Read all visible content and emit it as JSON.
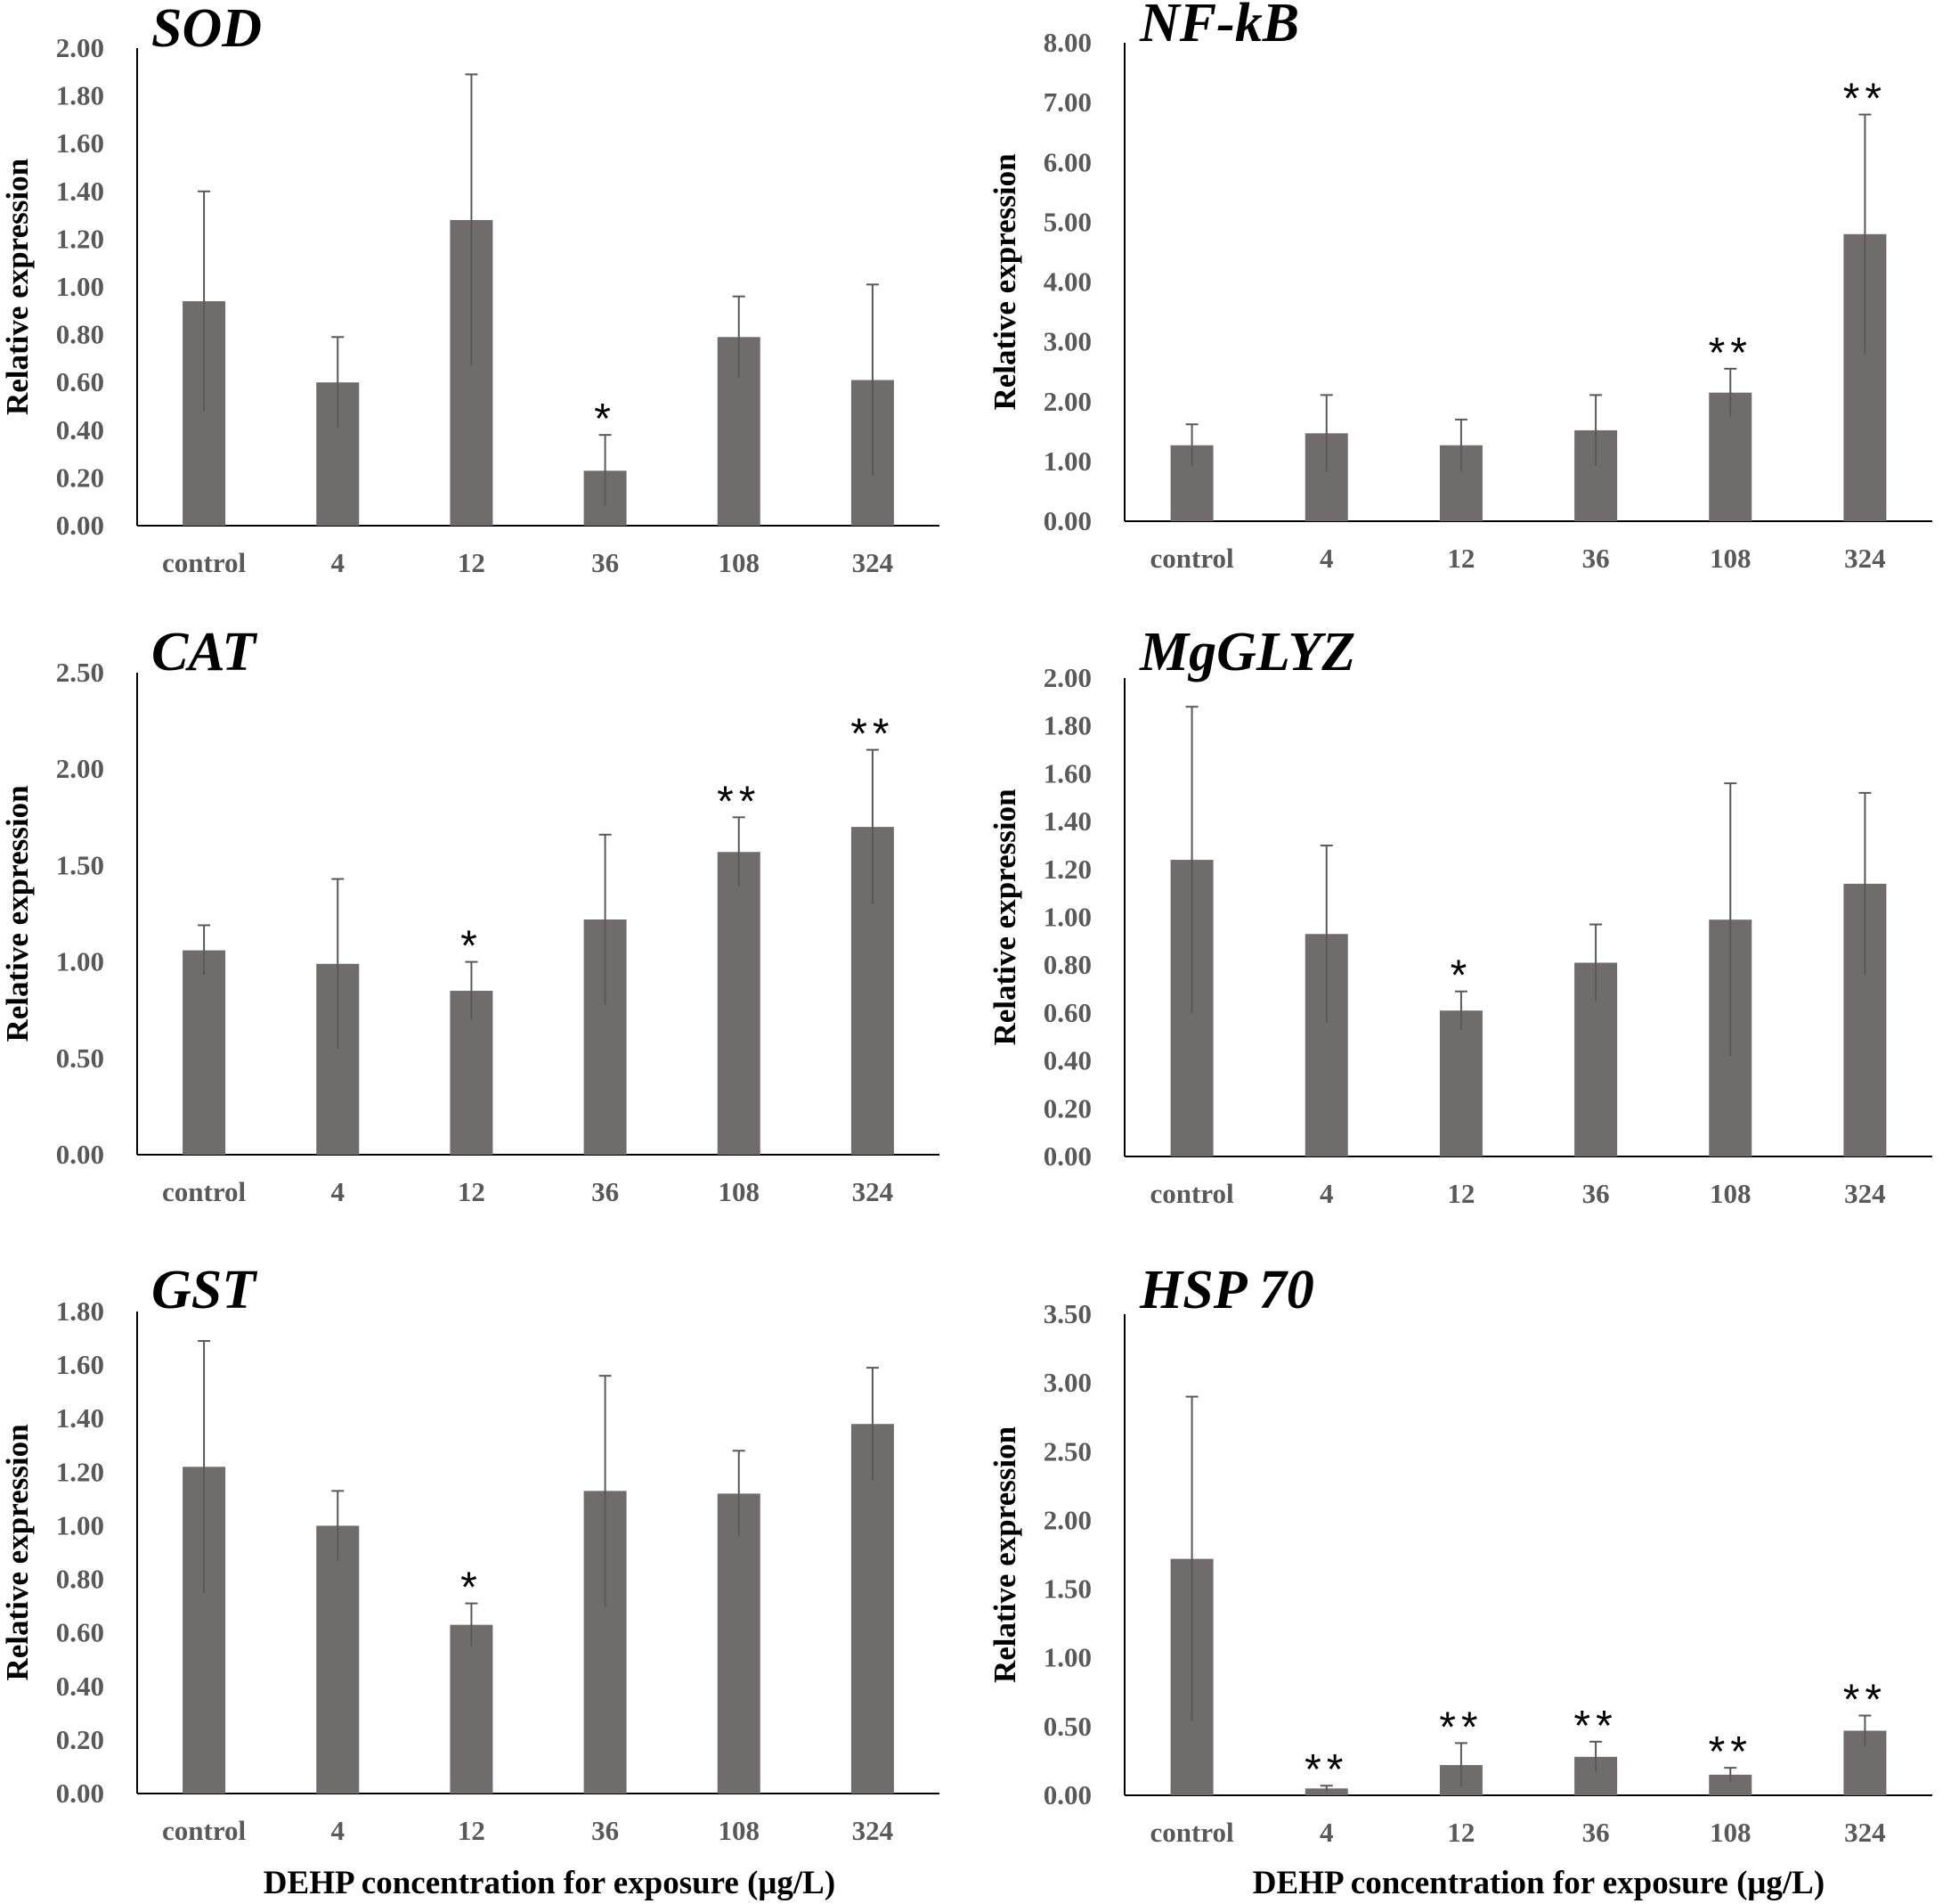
{
  "figure": {
    "x_axis_label_left": "DEHP concentration for exposure (μg/L)",
    "x_axis_label_right": "DEHP concentration for exposure (μg/L)",
    "colors": {
      "bar": "#706c6b",
      "axis": "#000000",
      "tick_text": "#595959",
      "error_bar": "#595959"
    }
  },
  "chart_data": [
    {
      "type": "bar",
      "title": "SOD",
      "xlabel": "",
      "ylabel": "Relative expression",
      "categories": [
        "control",
        "4",
        "12",
        "36",
        "108",
        "324"
      ],
      "values": [
        0.94,
        0.6,
        1.28,
        0.23,
        0.79,
        0.61
      ],
      "errors": [
        0.46,
        0.19,
        0.61,
        0.15,
        0.17,
        0.4
      ],
      "significance": [
        "",
        "",
        "",
        "*",
        "",
        ""
      ],
      "ylim": [
        0,
        2.0
      ],
      "yticks": [
        "0.00",
        "0.20",
        "0.40",
        "0.60",
        "0.80",
        "1.00",
        "1.20",
        "1.40",
        "1.60",
        "1.80",
        "2.00"
      ]
    },
    {
      "type": "bar",
      "title": "NF-kB",
      "xlabel": "",
      "ylabel": "Relative expression",
      "categories": [
        "control",
        "4",
        "12",
        "36",
        "108",
        "324"
      ],
      "values": [
        1.27,
        1.47,
        1.27,
        1.52,
        2.15,
        4.8
      ],
      "errors": [
        0.35,
        0.64,
        0.43,
        0.59,
        0.4,
        2.0
      ],
      "significance": [
        "",
        "",
        "",
        "",
        "**",
        "**"
      ],
      "ylim": [
        0,
        8.0
      ],
      "yticks": [
        "0.00",
        "1.00",
        "2.00",
        "3.00",
        "4.00",
        "5.00",
        "6.00",
        "7.00",
        "8.00"
      ]
    },
    {
      "type": "bar",
      "title": "CAT",
      "xlabel": "",
      "ylabel": "Relative expression",
      "categories": [
        "control",
        "4",
        "12",
        "36",
        "108",
        "324"
      ],
      "values": [
        1.06,
        0.99,
        0.85,
        1.22,
        1.57,
        1.7
      ],
      "errors": [
        0.13,
        0.44,
        0.15,
        0.44,
        0.18,
        0.4
      ],
      "significance": [
        "",
        "",
        "*",
        "",
        "**",
        "**"
      ],
      "ylim": [
        0,
        2.5
      ],
      "yticks": [
        "0.00",
        "0.50",
        "1.00",
        "1.50",
        "2.00",
        "2.50"
      ]
    },
    {
      "type": "bar",
      "title": "MgGLYZ",
      "xlabel": "",
      "ylabel": "Relative expression",
      "categories": [
        "control",
        "4",
        "12",
        "36",
        "108",
        "324"
      ],
      "values": [
        1.24,
        0.93,
        0.61,
        0.81,
        0.99,
        1.14
      ],
      "errors": [
        0.64,
        0.37,
        0.08,
        0.16,
        0.57,
        0.38
      ],
      "significance": [
        "",
        "",
        "*",
        "",
        "",
        ""
      ],
      "ylim": [
        0,
        2.0
      ],
      "yticks": [
        "0.00",
        "0.20",
        "0.40",
        "0.60",
        "0.80",
        "1.00",
        "1.20",
        "1.40",
        "1.60",
        "1.80",
        "2.00"
      ]
    },
    {
      "type": "bar",
      "title": "GST",
      "xlabel": "",
      "ylabel": "Relative expression",
      "categories": [
        "control",
        "4",
        "12",
        "36",
        "108",
        "324"
      ],
      "values": [
        1.22,
        1.0,
        0.63,
        1.13,
        1.12,
        1.38
      ],
      "errors": [
        0.47,
        0.13,
        0.08,
        0.43,
        0.16,
        0.21
      ],
      "significance": [
        "",
        "",
        "*",
        "",
        "",
        ""
      ],
      "ylim": [
        0,
        1.8
      ],
      "yticks": [
        "0.00",
        "0.20",
        "0.40",
        "0.60",
        "0.80",
        "1.00",
        "1.20",
        "1.40",
        "1.60",
        "1.80"
      ]
    },
    {
      "type": "bar",
      "title": "HSP 70",
      "xlabel": "",
      "ylabel": "Relative expression",
      "categories": [
        "control",
        "4",
        "12",
        "36",
        "108",
        "324"
      ],
      "values": [
        1.72,
        0.05,
        0.22,
        0.28,
        0.15,
        0.47
      ],
      "errors": [
        1.18,
        0.02,
        0.16,
        0.11,
        0.05,
        0.11
      ],
      "significance": [
        "",
        "**",
        "**",
        "**",
        "**",
        "**"
      ],
      "ylim": [
        0,
        3.5
      ],
      "yticks": [
        "0.00",
        "0.50",
        "1.00",
        "1.50",
        "2.00",
        "2.50",
        "3.00",
        "3.50"
      ]
    }
  ]
}
